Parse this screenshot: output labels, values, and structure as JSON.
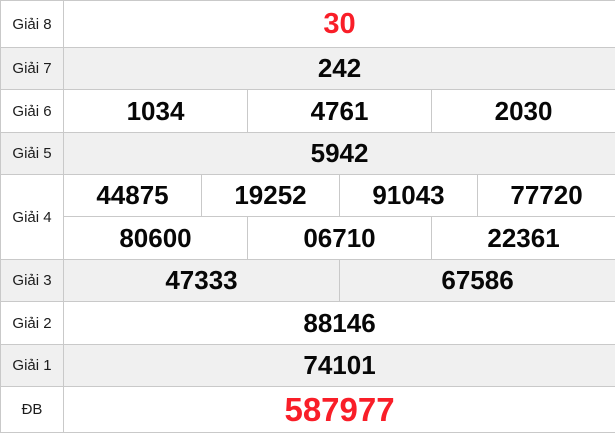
{
  "lottery": {
    "rows": [
      {
        "label": "Giải 8",
        "values": [
          "30"
        ],
        "highlighted": true
      },
      {
        "label": "Giải 7",
        "values": [
          "242"
        ],
        "highlighted": false
      },
      {
        "label": "Giải 6",
        "values": [
          "1034",
          "4761",
          "2030"
        ],
        "highlighted": false
      },
      {
        "label": "Giải 5",
        "values": [
          "5942"
        ],
        "highlighted": false
      },
      {
        "label": "Giải 4",
        "line1": [
          "44875",
          "19252",
          "91043",
          "77720"
        ],
        "line2": [
          "80600",
          "06710",
          "22361"
        ],
        "highlighted": false
      },
      {
        "label": "Giải 3",
        "values": [
          "47333",
          "67586"
        ],
        "highlighted": false
      },
      {
        "label": "Giải 2",
        "values": [
          "88146"
        ],
        "highlighted": false
      },
      {
        "label": "Giải 1",
        "values": [
          "74101"
        ],
        "highlighted": false
      },
      {
        "label": "ĐB",
        "values": [
          "587977"
        ],
        "highlighted": true
      }
    ],
    "colors": {
      "highlight_red": "#f91e28",
      "alt_row_bg": "#f0f0f0",
      "border": "#c9c9c9",
      "number_text": "#070707"
    }
  }
}
